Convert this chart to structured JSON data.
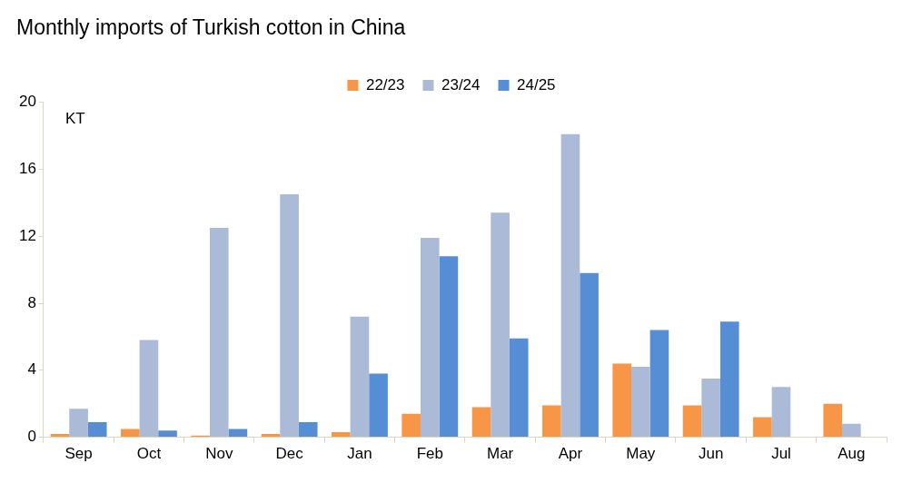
{
  "chart_data": {
    "type": "bar",
    "title": "Monthly imports of Turkish cotton in China",
    "annotations": [
      "KT"
    ],
    "categories": [
      "Sep",
      "Oct",
      "Nov",
      "Dec",
      "Jan",
      "Feb",
      "Mar",
      "Apr",
      "May",
      "Jun",
      "Jul",
      "Aug"
    ],
    "series": [
      {
        "name": "22/23",
        "color": "#f79646",
        "values": [
          0.2,
          0.5,
          0.1,
          0.2,
          0.3,
          1.4,
          1.8,
          1.9,
          4.4,
          1.9,
          1.2,
          2.0
        ]
      },
      {
        "name": "23/24",
        "color": "#abbad7",
        "values": [
          1.7,
          5.8,
          12.5,
          14.5,
          7.2,
          11.9,
          13.4,
          18.1,
          4.2,
          3.5,
          3.0,
          0.8
        ]
      },
      {
        "name": "24/25",
        "color": "#558ed5",
        "values": [
          0.9,
          0.4,
          0.5,
          0.9,
          3.8,
          10.8,
          5.9,
          9.8,
          6.4,
          6.9,
          null,
          null
        ]
      }
    ],
    "ylim": [
      0,
      20
    ],
    "yticks": [
      0,
      4,
      8,
      12,
      16,
      20
    ],
    "grid": false,
    "legend": "top"
  }
}
